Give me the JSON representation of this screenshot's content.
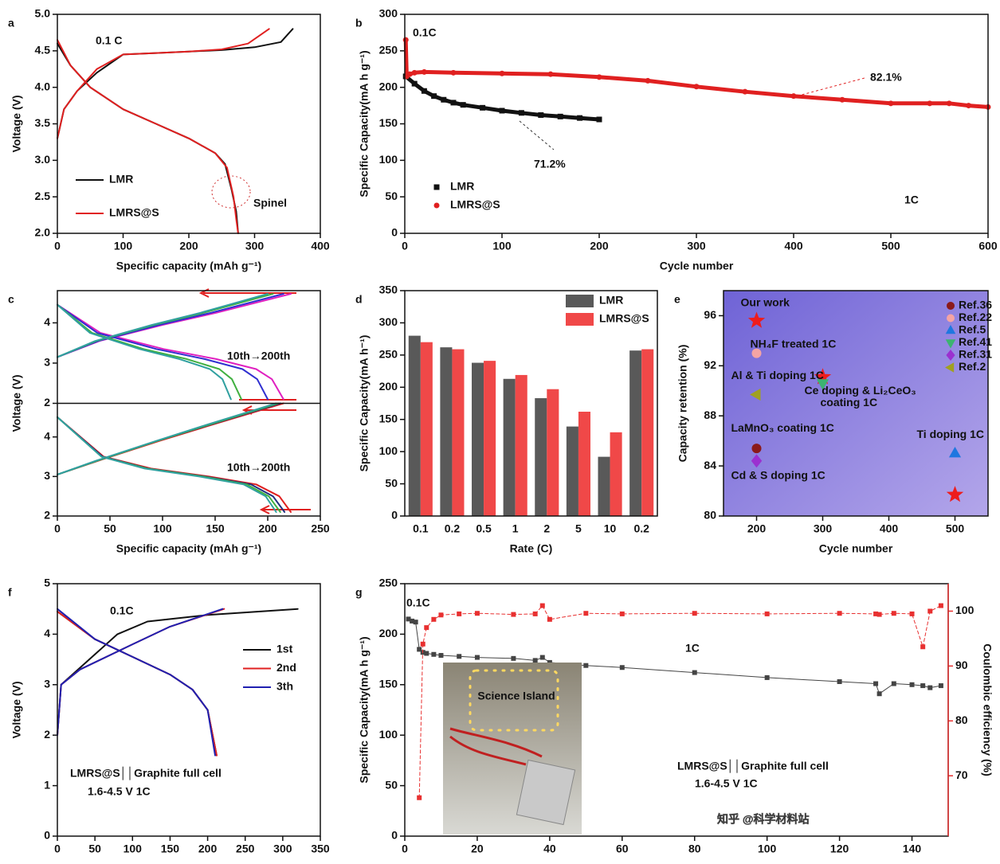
{
  "chart_data": [
    {
      "panel": "a",
      "type": "line",
      "xlabel": "Specific capacity (mAh g⁻¹)",
      "ylabel": "Voltage (V)",
      "xlim": [
        0,
        400
      ],
      "xticks": [
        0,
        100,
        200,
        300,
        400
      ],
      "ylim": [
        2,
        5
      ],
      "yticks": [
        {
          "value": 2,
          "label": "2.0"
        },
        {
          "value": 2.5,
          "label": "2.5"
        },
        {
          "value": 3,
          "label": "3.0"
        },
        {
          "value": 3.5,
          "label": "3.5"
        },
        {
          "value": 4,
          "label": "4.0"
        },
        {
          "value": 4.5,
          "label": "4.5"
        },
        {
          "value": 5,
          "label": "5.0"
        }
      ],
      "legend": "lower left",
      "annotations": [
        "0.1 C",
        "Spinel"
      ],
      "series": [
        {
          "name": "LMR",
          "color": "#111111",
          "x": [
            0,
            10,
            30,
            60,
            100,
            150,
            200,
            250,
            300,
            340,
            358,
            null,
            0,
            20,
            50,
            100,
            150,
            200,
            240,
            255,
            265,
            272,
            275
          ],
          "values": [
            3.3,
            3.7,
            3.95,
            4.2,
            4.45,
            4.47,
            4.49,
            4.51,
            4.55,
            4.62,
            4.8,
            null,
            4.6,
            4.3,
            4.0,
            3.7,
            3.5,
            3.3,
            3.1,
            2.95,
            2.6,
            2.3,
            2.0
          ]
        },
        {
          "name": "LMRS@S",
          "color": "#e02020",
          "x": [
            0,
            10,
            30,
            60,
            100,
            150,
            200,
            250,
            290,
            322,
            null,
            0,
            20,
            50,
            100,
            150,
            200,
            240,
            258,
            268,
            272,
            275
          ],
          "values": [
            3.3,
            3.7,
            3.95,
            4.25,
            4.45,
            4.47,
            4.49,
            4.52,
            4.6,
            4.8,
            null,
            4.65,
            4.3,
            4.0,
            3.7,
            3.5,
            3.3,
            3.1,
            2.9,
            2.5,
            2.2,
            2.0
          ]
        }
      ]
    },
    {
      "panel": "b",
      "type": "scatter",
      "connected": true,
      "xlabel": "Cycle number",
      "ylabel": "Specific Capacity(mA h g⁻¹)",
      "xlim": [
        0,
        600
      ],
      "xticks": [
        0,
        100,
        200,
        300,
        400,
        500,
        600
      ],
      "ylim": [
        0,
        300
      ],
      "yticks": [
        0,
        50,
        100,
        150,
        200,
        250,
        300
      ],
      "legend": "lower left",
      "annotations": [
        "0.1C",
        "71.2%",
        "82.1%",
        "1C"
      ],
      "series": [
        {
          "name": "LMR",
          "color": "#111111",
          "marker": "square",
          "x": [
            1,
            10,
            20,
            30,
            40,
            50,
            60,
            80,
            100,
            120,
            140,
            160,
            180,
            200
          ],
          "values": [
            215,
            205,
            195,
            188,
            183,
            179,
            176,
            172,
            168,
            165,
            162,
            160,
            158,
            156
          ]
        },
        {
          "name": "LMRS@S",
          "color": "#e02020",
          "marker": "circle",
          "x": [
            1,
            2,
            5,
            10,
            20,
            50,
            100,
            150,
            200,
            250,
            300,
            350,
            400,
            450,
            500,
            540,
            560,
            580,
            600
          ],
          "values": [
            265,
            215,
            218,
            220,
            221,
            220,
            219,
            218,
            214,
            209,
            201,
            194,
            188,
            183,
            178,
            178,
            178,
            175,
            173
          ]
        }
      ]
    },
    {
      "panel": "c",
      "type": "line",
      "xlabel": "Specific capacity (mAh g⁻¹)",
      "ylabel": "Voltage (V)",
      "xlim": [
        0,
        250
      ],
      "xticks": [
        0,
        50,
        100,
        150,
        200,
        250
      ],
      "annotations": [
        "10th→200th",
        "10th→200th"
      ],
      "panels": [
        {
          "ylim": [
            2,
            4.8
          ],
          "yticks": [
            2,
            3,
            4
          ],
          "series": [
            {
              "color": "#e020c0",
              "x": [
                0,
                40,
                100,
                151,
                222,
                null,
                0,
                41,
                101,
                151,
                189,
                204,
                215
              ],
              "values": [
                3.15,
                3.55,
                3.95,
                4.25,
                4.72,
                null,
                4.45,
                3.75,
                3.35,
                3.1,
                2.85,
                2.6,
                2.1
              ]
            },
            {
              "color": "#3030d0",
              "x": [
                0,
                39,
                97,
                146,
                215,
                null,
                0,
                38,
                94,
                140,
                176,
                190,
                200
              ],
              "values": [
                3.15,
                3.55,
                3.95,
                4.25,
                4.72,
                null,
                4.45,
                3.75,
                3.35,
                3.1,
                2.85,
                2.6,
                2.1
              ]
            },
            {
              "color": "#40b040",
              "x": [
                0,
                37,
                92,
                139,
                205,
                null,
                0,
                33,
                82,
                123,
                154,
                166,
                175
              ],
              "values": [
                3.15,
                3.55,
                3.95,
                4.25,
                4.72,
                null,
                4.45,
                3.75,
                3.35,
                3.1,
                2.85,
                2.6,
                2.1
              ]
            },
            {
              "color": "#30a0a0",
              "x": [
                0,
                36,
                90,
                136,
                200,
                null,
                0,
                31,
                78,
                116,
                145,
                157,
                165
              ],
              "values": [
                3.15,
                3.55,
                3.95,
                4.25,
                4.72,
                null,
                4.45,
                3.75,
                3.35,
                3.1,
                2.85,
                2.6,
                2.1
              ]
            }
          ]
        },
        {
          "ylim": [
            2,
            4.85
          ],
          "yticks": [
            2,
            3,
            4
          ],
          "series": [
            {
              "color": "#e02020",
              "x": [
                0,
                39,
                97,
                146,
                215,
                null,
                0,
                44,
                89,
                144,
                189,
                211,
                222
              ],
              "values": [
                3.05,
                3.4,
                3.9,
                4.3,
                4.85,
                null,
                4.5,
                3.5,
                3.2,
                3.0,
                2.8,
                2.5,
                2.1
              ]
            },
            {
              "color": "#203080",
              "x": [
                0,
                38,
                95,
                144,
                212,
                null,
                0,
                43,
                86,
                140,
                184,
                205,
                216
              ],
              "values": [
                3.05,
                3.4,
                3.9,
                4.3,
                4.85,
                null,
                4.5,
                3.5,
                3.2,
                3.0,
                2.8,
                2.5,
                2.1
              ]
            },
            {
              "color": "#40b040",
              "x": [
                0,
                38,
                95,
                143,
                210,
                null,
                0,
                42,
                85,
                138,
                180,
                201,
                212
              ],
              "values": [
                3.05,
                3.4,
                3.9,
                4.3,
                4.85,
                null,
                4.5,
                3.5,
                3.2,
                3.0,
                2.8,
                2.5,
                2.1
              ]
            },
            {
              "color": "#30a0a0",
              "x": [
                0,
                37,
                94,
                141,
                208,
                null,
                0,
                42,
                83,
                135,
                177,
                198,
                208
              ],
              "values": [
                3.05,
                3.4,
                3.9,
                4.3,
                4.85,
                null,
                4.5,
                3.5,
                3.2,
                3.0,
                2.8,
                2.5,
                2.1
              ]
            }
          ]
        }
      ]
    },
    {
      "panel": "d",
      "type": "bar",
      "xlabel": "Rate (C)",
      "ylabel": "Specific Capacity(mA h⁻¹)",
      "categories": [
        "0.1",
        "0.2",
        "0.5",
        "1",
        "2",
        "5",
        "10",
        "0.2"
      ],
      "ylim": [
        0,
        350
      ],
      "yticks": [
        0,
        50,
        100,
        150,
        200,
        250,
        300,
        350
      ],
      "legend": "upper right",
      "series": [
        {
          "name": "LMR",
          "color": "#595959",
          "values": [
            280,
            262,
            238,
            213,
            183,
            139,
            92,
            257
          ]
        },
        {
          "name": "LMRS@S",
          "color": "#f04848",
          "values": [
            270,
            259,
            241,
            219,
            197,
            162,
            130,
            259
          ]
        }
      ]
    },
    {
      "panel": "e",
      "type": "scatter",
      "xlabel": "Cycle number",
      "ylabel": "Capacity retention (%)",
      "xlim": [
        150,
        550
      ],
      "xticks": [
        200,
        300,
        400,
        500
      ],
      "ylim": [
        80,
        98
      ],
      "yticks": [
        80,
        84,
        88,
        92,
        96
      ],
      "legend": "upper right",
      "series": [
        {
          "name": "Our work",
          "in_legend": false,
          "color": "#ee1c1c",
          "marker": "star",
          "x": [
            200,
            300,
            500
          ],
          "values": [
            95.6,
            91.1,
            81.7
          ],
          "note": [
            "Our work"
          ]
        },
        {
          "name": "Ref.36",
          "color": "#8b1a1a",
          "marker": "circle",
          "x": [
            200
          ],
          "values": [
            85.4
          ],
          "note": [
            "LaMnO₃ coating 1C"
          ]
        },
        {
          "name": "Ref.22",
          "color": "#f4a4a4",
          "marker": "circle",
          "x": [
            200
          ],
          "values": [
            93
          ],
          "note": [
            "NH₄F treated 1C"
          ]
        },
        {
          "name": "Ref.5",
          "color": "#1f77e0",
          "marker": "triangle",
          "x": [
            500
          ],
          "values": [
            85
          ],
          "note": [
            "Ti doping 1C"
          ]
        },
        {
          "name": "Ref.41",
          "color": "#3cb371",
          "marker": "triangle-down",
          "x": [
            300
          ],
          "values": [
            90.6
          ],
          "note": [
            "Ce doping & Li₂CeO₃",
            "coating 1C"
          ]
        },
        {
          "name": "Ref.31",
          "color": "#9b30d0",
          "marker": "diamond",
          "x": [
            200
          ],
          "values": [
            84.4
          ],
          "note": [
            "Cd & S doping  1C"
          ]
        },
        {
          "name": "Ref.2",
          "color": "#a0a020",
          "marker": "triangle-left",
          "x": [
            200
          ],
          "values": [
            89.7
          ],
          "note": [
            "Al & Ti doping 1C"
          ]
        }
      ]
    },
    {
      "panel": "f",
      "type": "line",
      "xlabel": "Specific capacity (mAh g⁻¹)",
      "ylabel": "Voltage (V)",
      "xlim": [
        0,
        350
      ],
      "xticks": [
        0,
        50,
        100,
        150,
        200,
        250,
        300,
        350
      ],
      "ylim": [
        0,
        5
      ],
      "yticks": [
        0,
        1,
        2,
        3,
        4,
        5
      ],
      "legend": "right",
      "annotations": [
        "0.1C",
        "LMRS@S││Graphite  full cell",
        "1.6-4.5 V   1C"
      ],
      "series": [
        {
          "name": "1st",
          "color": "#111111",
          "x": [
            0,
            5,
            20,
            50,
            80,
            120,
            200,
            320,
            null,
            0,
            50,
            100,
            150,
            180,
            200,
            212
          ],
          "values": [
            2,
            3,
            3.2,
            3.6,
            4.0,
            4.25,
            4.38,
            4.5,
            null,
            4.45,
            3.9,
            3.55,
            3.2,
            2.9,
            2.5,
            1.6
          ]
        },
        {
          "name": "2nd",
          "color": "#e02020",
          "x": [
            0,
            5,
            30,
            100,
            150,
            222,
            null,
            0,
            50,
            100,
            150,
            180,
            200,
            212
          ],
          "values": [
            2,
            3,
            3.3,
            3.8,
            4.15,
            4.5,
            null,
            4.45,
            3.9,
            3.55,
            3.2,
            2.9,
            2.5,
            1.6
          ]
        },
        {
          "name": "3th",
          "color": "#2020b0",
          "x": [
            0,
            5,
            30,
            100,
            150,
            220,
            null,
            0,
            50,
            100,
            150,
            180,
            200,
            210
          ],
          "values": [
            2,
            3,
            3.3,
            3.8,
            4.15,
            4.5,
            null,
            4.5,
            3.9,
            3.55,
            3.2,
            2.9,
            2.5,
            1.6
          ]
        }
      ]
    },
    {
      "panel": "g",
      "type": "line",
      "xlabel": "Cycle number",
      "ylabel": "Specific Capacity(mA h g⁻¹)",
      "y2label": "Coulombic efficiency (%)",
      "xlim": [
        0,
        150
      ],
      "xticks": [
        0,
        20,
        40,
        60,
        80,
        100,
        120,
        140
      ],
      "ylim": [
        0,
        250
      ],
      "yticks": [
        0,
        50,
        100,
        150,
        200,
        250
      ],
      "y2lim": [
        59,
        105
      ],
      "y2ticks": [
        70,
        80,
        90,
        100
      ],
      "annotations": [
        "0.1C",
        "1C",
        "LMRS@S││Graphite  full cell",
        "1.6-4.5 V   1C"
      ],
      "inset_text": "Science Island",
      "watermark": "知乎 @科学材料站",
      "x": [
        1,
        2,
        3,
        4,
        5,
        6,
        8,
        10,
        15,
        20,
        30,
        36,
        38,
        40,
        50,
        60,
        80,
        100,
        120,
        130,
        131,
        135,
        140,
        143,
        145,
        148
      ],
      "series": [
        {
          "color": "#444444",
          "marker": "square",
          "values": [
            215,
            213,
            212,
            185,
            182,
            181,
            180,
            179,
            178,
            177,
            176,
            174,
            177,
            172,
            169,
            167,
            162,
            157,
            153,
            151,
            141,
            151,
            150,
            149,
            147,
            149
          ]
        },
        {
          "color": "#e83030",
          "marker": "square",
          "axis": "y2",
          "values": [
            null,
            null,
            null,
            66,
            94,
            97,
            98.5,
            99.3,
            99.5,
            99.6,
            99.4,
            99.5,
            101,
            98.5,
            99.6,
            99.5,
            99.6,
            99.5,
            99.6,
            99.5,
            99.4,
            99.6,
            99.5,
            93.5,
            100,
            101
          ]
        }
      ]
    }
  ]
}
